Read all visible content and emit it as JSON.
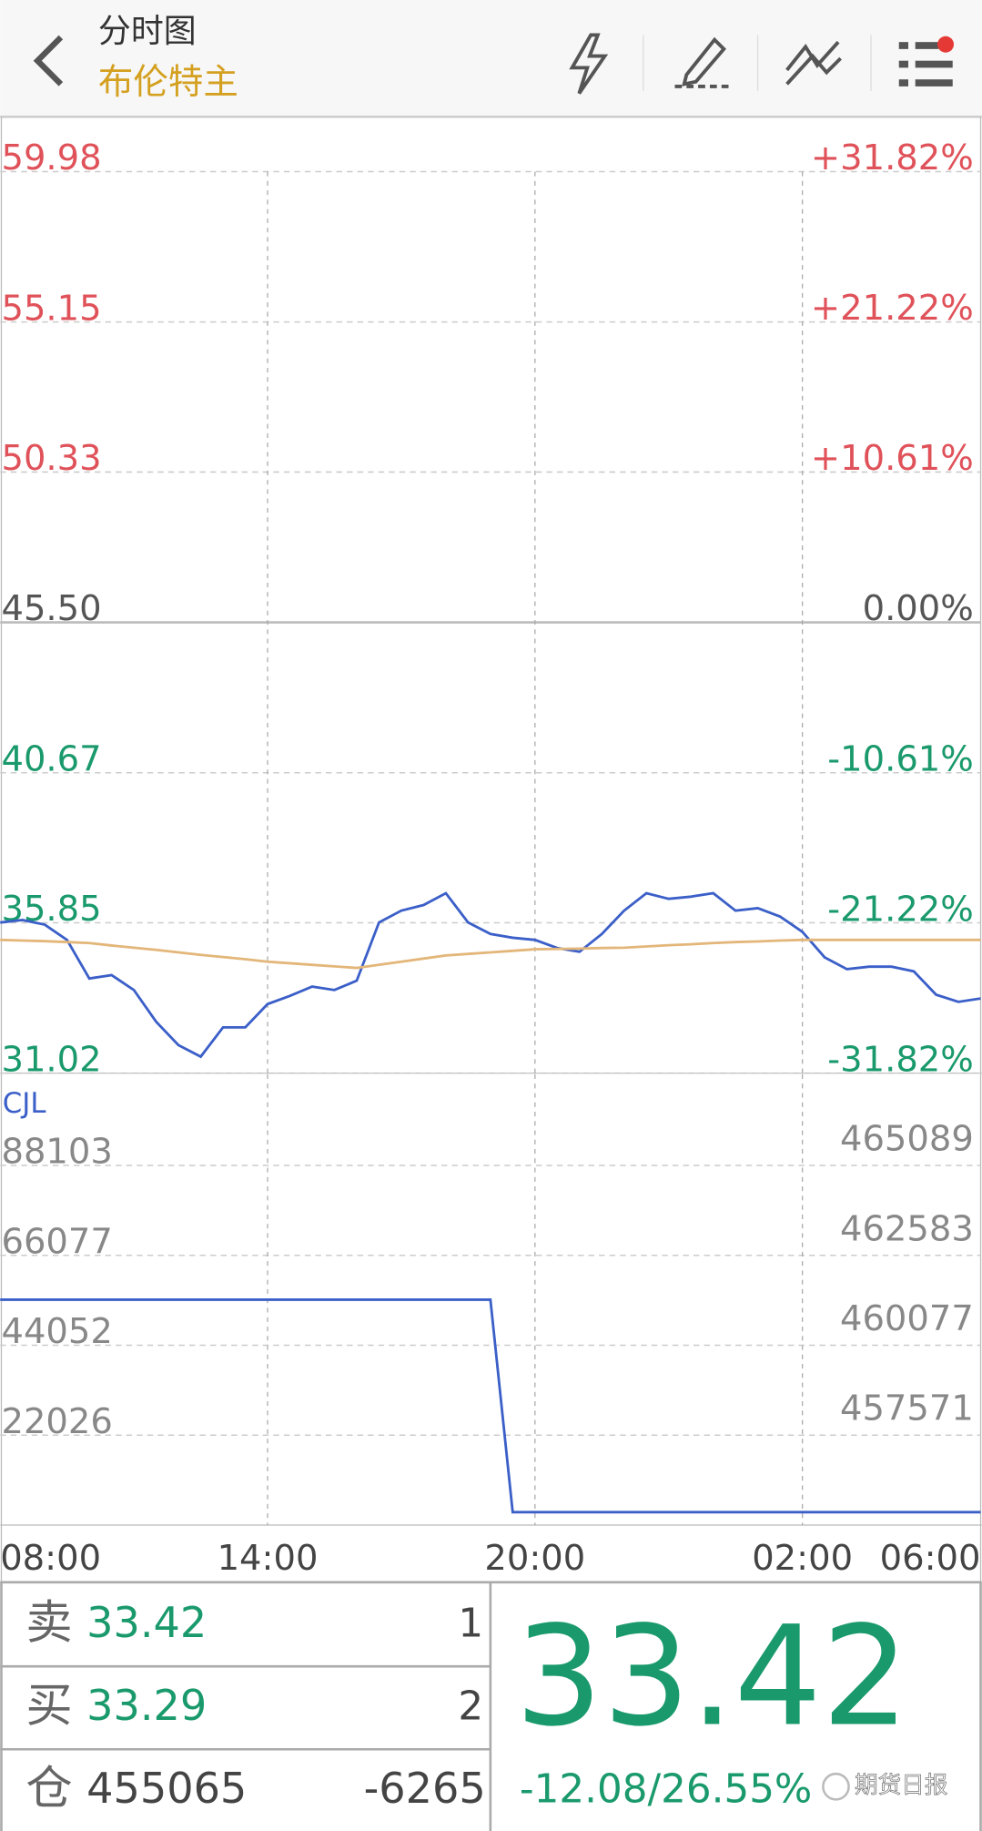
{
  "header": {
    "title": "分时图",
    "subtitle": "布伦特主"
  },
  "chart_data": [
    {
      "type": "line",
      "ylim": [
        31.02,
        59.98
      ],
      "yticks": [
        59.98,
        55.15,
        50.33,
        {
          "value": 45.5,
          "label": "45.50"
        },
        40.67,
        35.85,
        31.02
      ],
      "y2lim": [
        -31.82,
        31.82
      ],
      "y2ticks": [
        {
          "value": 31.82,
          "label": "+31.82%"
        },
        {
          "value": 21.22,
          "label": "+21.22%"
        },
        {
          "value": 10.61,
          "label": "+10.61%"
        },
        {
          "value": 0,
          "label": "0.00%"
        },
        {
          "value": -10.61,
          "label": "-10.61%"
        },
        {
          "value": -21.22,
          "label": "-21.22%"
        },
        {
          "value": -31.82,
          "label": "-31.82%"
        }
      ],
      "grid": true,
      "series": [
        {
          "color": "#3b5fc8",
          "values": [
            35.86,
            35.94,
            35.79,
            35.3,
            34.06,
            34.17,
            33.69,
            32.67,
            31.92,
            31.55,
            32.49,
            32.49,
            33.24,
            33.5,
            33.8,
            33.69,
            33.99,
            35.86,
            36.24,
            36.42,
            36.8,
            35.86,
            35.49,
            35.37,
            35.3,
            35.04,
            34.92,
            35.49,
            36.24,
            36.8,
            36.62,
            36.69,
            36.8,
            36.24,
            36.32,
            36.05,
            35.56,
            34.74,
            34.36,
            34.44,
            34.44,
            34.29,
            33.54,
            33.31,
            33.42
          ]
        },
        {
          "color": "#e3b67a",
          "values": [
            35.3,
            35.28,
            35.26,
            35.23,
            35.2,
            35.12,
            35.05,
            34.98,
            34.9,
            34.82,
            34.75,
            34.68,
            34.6,
            34.55,
            34.5,
            34.45,
            34.4,
            34.5,
            34.6,
            34.7,
            34.8,
            34.85,
            34.9,
            34.95,
            35.0,
            35.01,
            35.02,
            35.04,
            35.05,
            35.09,
            35.13,
            35.16,
            35.2,
            35.23,
            35.25,
            35.28,
            35.3,
            35.3,
            35.3,
            35.3,
            35.3,
            35.3,
            35.3,
            35.3,
            35.3
          ]
        }
      ]
    },
    {
      "type": "line",
      "title": "CJL",
      "categories": [
        "08:00",
        null,
        null,
        null,
        null,
        null,
        null,
        null,
        null,
        null,
        null,
        null,
        "14:00",
        null,
        null,
        null,
        null,
        null,
        null,
        null,
        null,
        null,
        null,
        null,
        "20:00",
        null,
        null,
        null,
        null,
        null,
        null,
        null,
        null,
        null,
        null,
        null,
        "02:00",
        null,
        null,
        null,
        null,
        null,
        null,
        null,
        "06:00"
      ],
      "ylim": [
        0,
        110416
      ],
      "yticks": [
        88103,
        66077,
        44052,
        22026
      ],
      "y2lim": [
        454706,
        467270
      ],
      "y2ticks": [
        465089,
        462583,
        460077,
        457571
      ],
      "grid": true,
      "series": [
        {
          "color": "#3b5fc8",
          "axis": "y2",
          "values": [
            460988,
            460988,
            460988,
            460988,
            460988,
            460988,
            460988,
            460988,
            460988,
            460988,
            460988,
            460988,
            460988,
            460988,
            460988,
            460988,
            460988,
            460988,
            460988,
            460988,
            460988,
            460988,
            460988,
            455065,
            455065,
            455065,
            455065,
            455065,
            455065,
            455065,
            455065,
            455065,
            455065,
            455065,
            455065,
            455065,
            455065,
            455065,
            455065,
            455065,
            455065,
            455065,
            455065,
            455065,
            455065
          ]
        }
      ]
    }
  ],
  "quote": {
    "sell_label": "卖",
    "sell_price": "33.42",
    "sell_qty": "1",
    "buy_label": "买",
    "buy_price": "33.29",
    "buy_qty": "2",
    "oi_label": "仓",
    "oi": "455065",
    "oi_change": "-6265",
    "last": "33.42",
    "change": "-12.08/26.55%",
    "watermark": "期货日报"
  }
}
